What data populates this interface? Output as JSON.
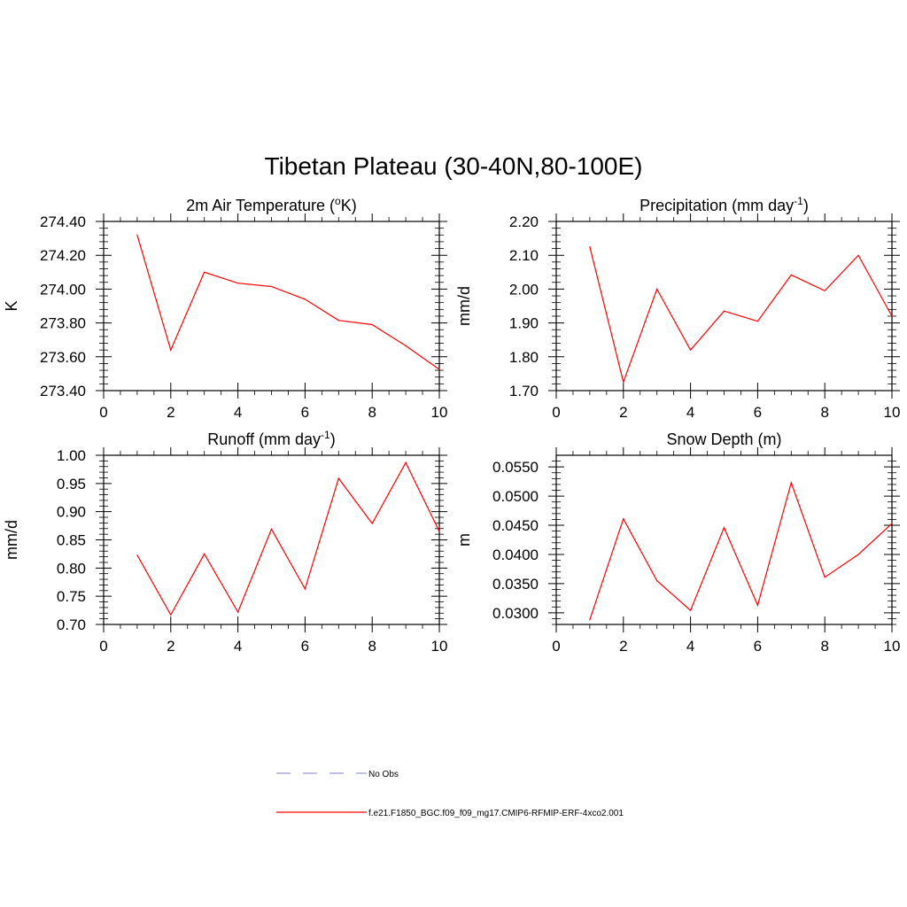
{
  "main_title": "Tibetan Plateau (30-40N,80-100E)",
  "line_color": "#ff0000",
  "obs_color": "#9999dd",
  "legend": [
    {
      "label": "No Obs",
      "style": "dashed"
    },
    {
      "label": "f.e21.F1850_BGC.f09_f09_mg17.CMIP6-RFMIP-ERF-4xco2.001",
      "style": "solid"
    }
  ],
  "chart_data": [
    {
      "type": "line",
      "title": "2m Air Temperature (",
      "title_sup": "o",
      "title_after": "K)",
      "ylabel": "K",
      "xlim": [
        0,
        10
      ],
      "ylim": [
        273.4,
        274.4
      ],
      "x_ticks": [
        "0",
        "2",
        "4",
        "6",
        "8",
        "10"
      ],
      "y_ticks": [
        "273.40",
        "273.60",
        "273.80",
        "274.00",
        "274.20",
        "274.40"
      ],
      "x": [
        1,
        2,
        3,
        4,
        5,
        6,
        7,
        8,
        9,
        10
      ],
      "values": [
        274.32,
        273.64,
        274.1,
        274.035,
        274.015,
        273.94,
        273.815,
        273.79,
        273.665,
        273.525
      ]
    },
    {
      "type": "line",
      "title": "Precipitation (mm day",
      "title_sup": "-1",
      "title_after": ")",
      "ylabel": "mm/d",
      "xlim": [
        0,
        10
      ],
      "ylim": [
        1.7,
        2.2
      ],
      "x_ticks": [
        "0",
        "2",
        "4",
        "6",
        "8",
        "10"
      ],
      "y_ticks": [
        "1.70",
        "1.80",
        "1.90",
        "2.00",
        "2.10",
        "2.20"
      ],
      "x": [
        1,
        2,
        3,
        4,
        5,
        6,
        7,
        8,
        9,
        10
      ],
      "values": [
        2.125,
        1.725,
        2.0,
        1.82,
        1.935,
        1.905,
        2.042,
        1.995,
        2.1,
        1.92
      ]
    },
    {
      "type": "line",
      "title": "Runoff (mm day",
      "title_sup": "-1",
      "title_after": ")",
      "ylabel": "mm/d",
      "xlim": [
        0,
        10
      ],
      "ylim": [
        0.7,
        1.0
      ],
      "x_ticks": [
        "0",
        "2",
        "4",
        "6",
        "8",
        "10"
      ],
      "y_ticks": [
        "0.70",
        "0.75",
        "0.80",
        "0.85",
        "0.90",
        "0.95",
        "1.00"
      ],
      "x": [
        1,
        2,
        3,
        4,
        5,
        6,
        7,
        8,
        9,
        10
      ],
      "values": [
        0.823,
        0.717,
        0.825,
        0.722,
        0.869,
        0.763,
        0.959,
        0.879,
        0.987,
        0.865
      ]
    },
    {
      "type": "line",
      "title": "Snow Depth (m)",
      "title_sup": "",
      "title_after": "",
      "ylabel": "m",
      "xlim": [
        0,
        10
      ],
      "ylim": [
        0.028,
        0.057
      ],
      "x_ticks": [
        "0",
        "2",
        "4",
        "6",
        "8",
        "10"
      ],
      "y_ticks": [
        "0.0300",
        "0.0350",
        "0.0400",
        "0.0450",
        "0.0500",
        "0.0550"
      ],
      "x": [
        1,
        2,
        3,
        4,
        5,
        6,
        7,
        8,
        9,
        10
      ],
      "values": [
        0.0288,
        0.0461,
        0.0355,
        0.0304,
        0.0446,
        0.0313,
        0.0523,
        0.0361,
        0.04,
        0.0453
      ]
    }
  ]
}
